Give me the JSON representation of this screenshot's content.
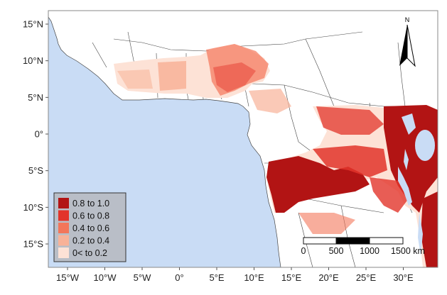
{
  "map": {
    "y_ticks": [
      "15°N",
      "10°N",
      "5°N",
      "0°",
      "5°S",
      "10°S",
      "15°S"
    ],
    "x_ticks": [
      "15°W",
      "10°W",
      "5°W",
      "0°",
      "5°E",
      "10°E",
      "15°E",
      "20°E",
      "25°E",
      "30°E"
    ],
    "north_label": "N",
    "colors": {
      "ocean": "#c9dcf5",
      "land": "#ffffff",
      "border": "#444444",
      "frame": "#888888"
    }
  },
  "legend": {
    "items": [
      {
        "label": "0.8 to 1.0",
        "color": "#b21414"
      },
      {
        "label": "0.6 to 0.8",
        "color": "#e2342a"
      },
      {
        "label": "0.4 to 0.6",
        "color": "#f3765a"
      },
      {
        "label": "0.2 to 0.4",
        "color": "#f8b298"
      },
      {
        "label": "0< to 0.2",
        "color": "#fde2d6"
      }
    ],
    "background": "#b9bec7"
  },
  "scale_bar": {
    "labels": [
      "0",
      "500",
      "1000",
      "1500 km"
    ]
  }
}
